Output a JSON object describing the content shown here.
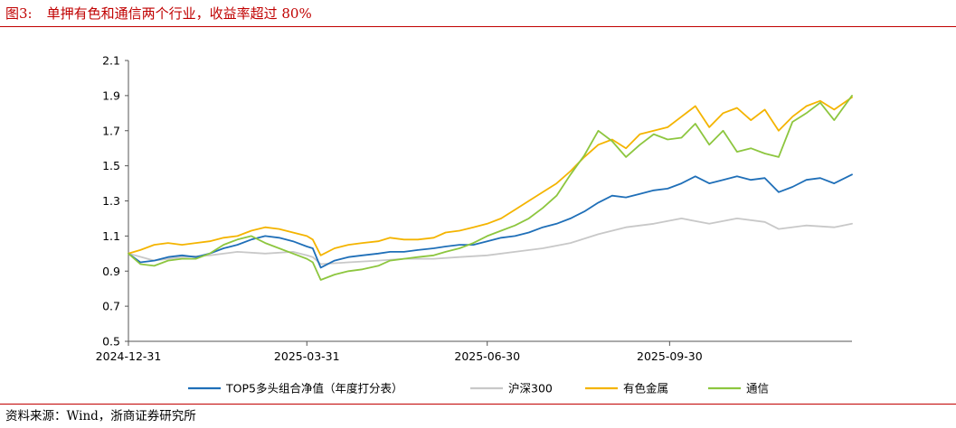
{
  "figure": {
    "label": "图3:",
    "title": "单押有色和通信两个行业，收益率超过 80%",
    "source": "资料来源：Wind，浙商证券研究所"
  },
  "chart_data": {
    "type": "line",
    "title": "单押有色和通信两个行业，收益率超过 80%",
    "xlabel": "",
    "ylabel": "",
    "x_ticks": [
      "2024-12-31",
      "2025-03-31",
      "2025-06-30",
      "2025-09-30"
    ],
    "x_range": [
      "2024-12-31",
      "2025-12-31"
    ],
    "ylim": [
      0.5,
      2.1
    ],
    "y_ticks": [
      "0.5",
      "0.7",
      "0.9",
      "1.1",
      "1.3",
      "1.5",
      "1.7",
      "1.9",
      "2.1"
    ],
    "grid": false,
    "legend_position": "bottom",
    "series": [
      {
        "name": "TOP5多头组合净值（年度打分表）",
        "color": "#1f6fb8",
        "points": [
          [
            "2024-12-31",
            1.0
          ],
          [
            "2025-01-06",
            0.95
          ],
          [
            "2025-01-13",
            0.96
          ],
          [
            "2025-01-20",
            0.98
          ],
          [
            "2025-01-27",
            0.99
          ],
          [
            "2025-02-03",
            0.98
          ],
          [
            "2025-02-10",
            1.0
          ],
          [
            "2025-02-17",
            1.03
          ],
          [
            "2025-02-24",
            1.05
          ],
          [
            "2025-03-03",
            1.08
          ],
          [
            "2025-03-10",
            1.1
          ],
          [
            "2025-03-17",
            1.09
          ],
          [
            "2025-03-24",
            1.07
          ],
          [
            "2025-03-31",
            1.04
          ],
          [
            "2025-04-03",
            1.03
          ],
          [
            "2025-04-07",
            0.92
          ],
          [
            "2025-04-14",
            0.96
          ],
          [
            "2025-04-21",
            0.98
          ],
          [
            "2025-04-28",
            0.99
          ],
          [
            "2025-05-06",
            1.0
          ],
          [
            "2025-05-12",
            1.01
          ],
          [
            "2025-05-19",
            1.01
          ],
          [
            "2025-05-26",
            1.02
          ],
          [
            "2025-06-03",
            1.03
          ],
          [
            "2025-06-09",
            1.04
          ],
          [
            "2025-06-16",
            1.05
          ],
          [
            "2025-06-23",
            1.05
          ],
          [
            "2025-06-30",
            1.07
          ],
          [
            "2025-07-07",
            1.09
          ],
          [
            "2025-07-14",
            1.1
          ],
          [
            "2025-07-21",
            1.12
          ],
          [
            "2025-07-28",
            1.15
          ],
          [
            "2025-08-04",
            1.17
          ],
          [
            "2025-08-11",
            1.2
          ],
          [
            "2025-08-18",
            1.24
          ],
          [
            "2025-08-25",
            1.29
          ],
          [
            "2025-09-01",
            1.33
          ],
          [
            "2025-09-08",
            1.32
          ],
          [
            "2025-09-15",
            1.34
          ],
          [
            "2025-09-22",
            1.36
          ],
          [
            "2025-09-29",
            1.37
          ],
          [
            "2025-10-06",
            1.4
          ],
          [
            "2025-10-13",
            1.44
          ],
          [
            "2025-10-20",
            1.4
          ],
          [
            "2025-10-27",
            1.42
          ],
          [
            "2025-11-03",
            1.44
          ],
          [
            "2025-11-10",
            1.42
          ],
          [
            "2025-11-17",
            1.43
          ],
          [
            "2025-11-24",
            1.35
          ],
          [
            "2025-12-01",
            1.38
          ],
          [
            "2025-12-08",
            1.42
          ],
          [
            "2025-12-15",
            1.43
          ],
          [
            "2025-12-22",
            1.4
          ],
          [
            "2025-12-31",
            1.45
          ]
        ]
      },
      {
        "name": "沪深300",
        "color": "#c8c8c8",
        "points": [
          [
            "2024-12-31",
            1.0
          ],
          [
            "2025-01-13",
            0.96
          ],
          [
            "2025-01-27",
            0.98
          ],
          [
            "2025-02-10",
            0.99
          ],
          [
            "2025-02-24",
            1.01
          ],
          [
            "2025-03-10",
            1.0
          ],
          [
            "2025-03-24",
            1.01
          ],
          [
            "2025-03-31",
            0.99
          ],
          [
            "2025-04-03",
            0.98
          ],
          [
            "2025-04-07",
            0.94
          ],
          [
            "2025-04-21",
            0.95
          ],
          [
            "2025-05-06",
            0.96
          ],
          [
            "2025-05-19",
            0.97
          ],
          [
            "2025-06-03",
            0.97
          ],
          [
            "2025-06-16",
            0.98
          ],
          [
            "2025-06-30",
            0.99
          ],
          [
            "2025-07-14",
            1.01
          ],
          [
            "2025-07-28",
            1.03
          ],
          [
            "2025-08-11",
            1.06
          ],
          [
            "2025-08-25",
            1.11
          ],
          [
            "2025-09-08",
            1.15
          ],
          [
            "2025-09-22",
            1.17
          ],
          [
            "2025-10-06",
            1.2
          ],
          [
            "2025-10-20",
            1.17
          ],
          [
            "2025-11-03",
            1.2
          ],
          [
            "2025-11-17",
            1.18
          ],
          [
            "2025-11-24",
            1.14
          ],
          [
            "2025-12-08",
            1.16
          ],
          [
            "2025-12-22",
            1.15
          ],
          [
            "2025-12-31",
            1.17
          ]
        ]
      },
      {
        "name": "有色金属",
        "color": "#f4b400",
        "points": [
          [
            "2024-12-31",
            1.0
          ],
          [
            "2025-01-06",
            1.02
          ],
          [
            "2025-01-13",
            1.05
          ],
          [
            "2025-01-20",
            1.06
          ],
          [
            "2025-01-27",
            1.05
          ],
          [
            "2025-02-03",
            1.06
          ],
          [
            "2025-02-10",
            1.07
          ],
          [
            "2025-02-17",
            1.09
          ],
          [
            "2025-02-24",
            1.1
          ],
          [
            "2025-03-03",
            1.13
          ],
          [
            "2025-03-10",
            1.15
          ],
          [
            "2025-03-17",
            1.14
          ],
          [
            "2025-03-24",
            1.12
          ],
          [
            "2025-03-31",
            1.1
          ],
          [
            "2025-04-03",
            1.08
          ],
          [
            "2025-04-07",
            0.99
          ],
          [
            "2025-04-14",
            1.03
          ],
          [
            "2025-04-21",
            1.05
          ],
          [
            "2025-04-28",
            1.06
          ],
          [
            "2025-05-06",
            1.07
          ],
          [
            "2025-05-12",
            1.09
          ],
          [
            "2025-05-19",
            1.08
          ],
          [
            "2025-05-26",
            1.08
          ],
          [
            "2025-06-03",
            1.09
          ],
          [
            "2025-06-09",
            1.12
          ],
          [
            "2025-06-16",
            1.13
          ],
          [
            "2025-06-23",
            1.15
          ],
          [
            "2025-06-30",
            1.17
          ],
          [
            "2025-07-07",
            1.2
          ],
          [
            "2025-07-14",
            1.25
          ],
          [
            "2025-07-21",
            1.3
          ],
          [
            "2025-07-28",
            1.35
          ],
          [
            "2025-08-04",
            1.4
          ],
          [
            "2025-08-11",
            1.47
          ],
          [
            "2025-08-18",
            1.55
          ],
          [
            "2025-08-25",
            1.62
          ],
          [
            "2025-09-01",
            1.65
          ],
          [
            "2025-09-08",
            1.6
          ],
          [
            "2025-09-15",
            1.68
          ],
          [
            "2025-09-22",
            1.7
          ],
          [
            "2025-09-29",
            1.72
          ],
          [
            "2025-10-06",
            1.78
          ],
          [
            "2025-10-13",
            1.84
          ],
          [
            "2025-10-20",
            1.72
          ],
          [
            "2025-10-27",
            1.8
          ],
          [
            "2025-11-03",
            1.83
          ],
          [
            "2025-11-10",
            1.76
          ],
          [
            "2025-11-17",
            1.82
          ],
          [
            "2025-11-24",
            1.7
          ],
          [
            "2025-12-01",
            1.78
          ],
          [
            "2025-12-08",
            1.84
          ],
          [
            "2025-12-15",
            1.87
          ],
          [
            "2025-12-22",
            1.82
          ],
          [
            "2025-12-31",
            1.89
          ]
        ]
      },
      {
        "name": "通信",
        "color": "#8dc63f",
        "points": [
          [
            "2024-12-31",
            1.0
          ],
          [
            "2025-01-06",
            0.94
          ],
          [
            "2025-01-13",
            0.93
          ],
          [
            "2025-01-20",
            0.96
          ],
          [
            "2025-01-27",
            0.97
          ],
          [
            "2025-02-03",
            0.97
          ],
          [
            "2025-02-10",
            1.0
          ],
          [
            "2025-02-17",
            1.05
          ],
          [
            "2025-02-24",
            1.08
          ],
          [
            "2025-03-03",
            1.1
          ],
          [
            "2025-03-10",
            1.06
          ],
          [
            "2025-03-17",
            1.03
          ],
          [
            "2025-03-24",
            1.0
          ],
          [
            "2025-03-31",
            0.97
          ],
          [
            "2025-04-03",
            0.95
          ],
          [
            "2025-04-07",
            0.85
          ],
          [
            "2025-04-14",
            0.88
          ],
          [
            "2025-04-21",
            0.9
          ],
          [
            "2025-04-28",
            0.91
          ],
          [
            "2025-05-06",
            0.93
          ],
          [
            "2025-05-12",
            0.96
          ],
          [
            "2025-05-19",
            0.97
          ],
          [
            "2025-05-26",
            0.98
          ],
          [
            "2025-06-03",
            0.99
          ],
          [
            "2025-06-09",
            1.01
          ],
          [
            "2025-06-16",
            1.03
          ],
          [
            "2025-06-23",
            1.06
          ],
          [
            "2025-06-30",
            1.1
          ],
          [
            "2025-07-07",
            1.13
          ],
          [
            "2025-07-14",
            1.16
          ],
          [
            "2025-07-21",
            1.2
          ],
          [
            "2025-07-28",
            1.26
          ],
          [
            "2025-08-04",
            1.33
          ],
          [
            "2025-08-11",
            1.45
          ],
          [
            "2025-08-18",
            1.56
          ],
          [
            "2025-08-25",
            1.7
          ],
          [
            "2025-09-01",
            1.64
          ],
          [
            "2025-09-08",
            1.55
          ],
          [
            "2025-09-15",
            1.62
          ],
          [
            "2025-09-22",
            1.68
          ],
          [
            "2025-09-29",
            1.65
          ],
          [
            "2025-10-06",
            1.66
          ],
          [
            "2025-10-13",
            1.74
          ],
          [
            "2025-10-20",
            1.62
          ],
          [
            "2025-10-27",
            1.7
          ],
          [
            "2025-11-03",
            1.58
          ],
          [
            "2025-11-10",
            1.6
          ],
          [
            "2025-11-17",
            1.57
          ],
          [
            "2025-11-24",
            1.55
          ],
          [
            "2025-12-01",
            1.75
          ],
          [
            "2025-12-08",
            1.8
          ],
          [
            "2025-12-15",
            1.86
          ],
          [
            "2025-12-22",
            1.76
          ],
          [
            "2025-12-31",
            1.9
          ]
        ]
      }
    ]
  }
}
